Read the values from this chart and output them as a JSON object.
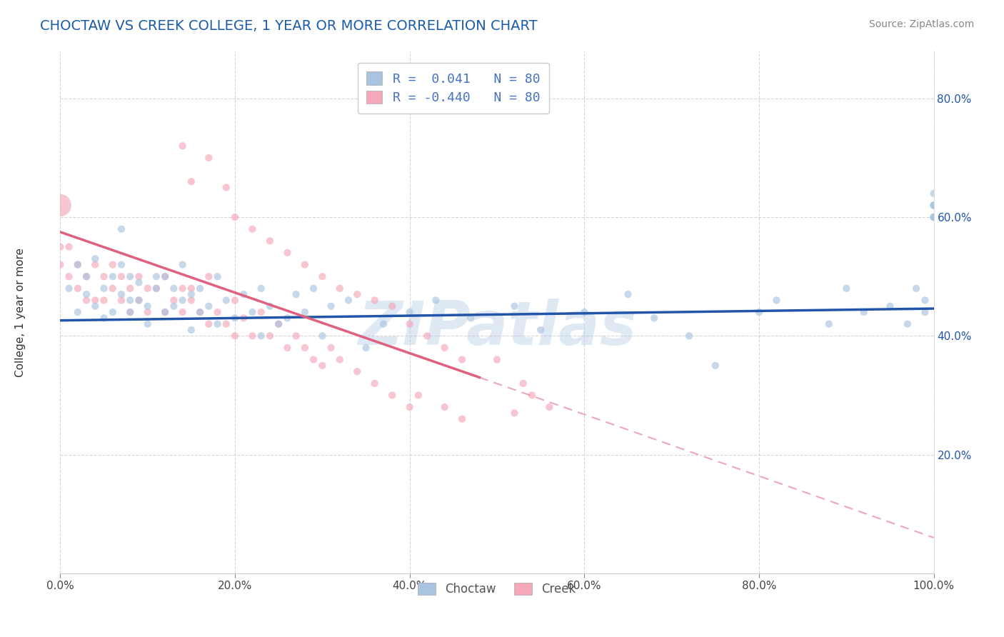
{
  "title": "CHOCTAW VS CREEK COLLEGE, 1 YEAR OR MORE CORRELATION CHART",
  "source_text": "Source: ZipAtlas.com",
  "ylabel": "College, 1 year or more",
  "xlim": [
    0.0,
    1.0
  ],
  "ylim": [
    0.0,
    0.88
  ],
  "xtick_labels": [
    "0.0%",
    "20.0%",
    "40.0%",
    "60.0%",
    "80.0%",
    "100.0%"
  ],
  "xtick_vals": [
    0.0,
    0.2,
    0.4,
    0.6,
    0.8,
    1.0
  ],
  "ytick_labels": [
    "20.0%",
    "40.0%",
    "60.0%",
    "80.0%"
  ],
  "ytick_vals": [
    0.2,
    0.4,
    0.6,
    0.8
  ],
  "legend_r_choctaw": "0.041",
  "legend_r_creek": "-0.440",
  "legend_n_choctaw": "80",
  "legend_n_creek": "80",
  "choctaw_color": "#a8c4e0",
  "creek_color": "#f4a8b8",
  "choctaw_line_color": "#2255aa",
  "creek_line_color": "#e06080",
  "watermark": "ZIPatlas",
  "background_color": "#ffffff",
  "grid_color": "#cccccc",
  "title_color": "#1a5ca8",
  "legend_text_color": "#4472c4",
  "choctaw_scatter": {
    "x": [
      0.01,
      0.02,
      0.02,
      0.03,
      0.03,
      0.04,
      0.04,
      0.05,
      0.05,
      0.06,
      0.06,
      0.07,
      0.07,
      0.07,
      0.08,
      0.08,
      0.08,
      0.09,
      0.09,
      0.1,
      0.1,
      0.11,
      0.11,
      0.12,
      0.12,
      0.13,
      0.13,
      0.14,
      0.14,
      0.15,
      0.15,
      0.16,
      0.16,
      0.17,
      0.18,
      0.18,
      0.19,
      0.2,
      0.21,
      0.22,
      0.23,
      0.23,
      0.24,
      0.25,
      0.26,
      0.27,
      0.28,
      0.29,
      0.3,
      0.31,
      0.33,
      0.35,
      0.37,
      0.4,
      0.43,
      0.47,
      0.52,
      0.55,
      0.6,
      0.65,
      0.68,
      0.72,
      0.75,
      0.8,
      0.82,
      0.88,
      0.9,
      0.92,
      0.95,
      0.97,
      0.98,
      0.99,
      0.99,
      1.0,
      1.0,
      1.0,
      1.0,
      1.0,
      1.0,
      1.0
    ],
    "y": [
      0.48,
      0.52,
      0.44,
      0.47,
      0.5,
      0.53,
      0.45,
      0.43,
      0.48,
      0.5,
      0.44,
      0.47,
      0.52,
      0.58,
      0.46,
      0.5,
      0.44,
      0.49,
      0.46,
      0.42,
      0.45,
      0.48,
      0.5,
      0.44,
      0.5,
      0.48,
      0.45,
      0.46,
      0.52,
      0.47,
      0.41,
      0.44,
      0.48,
      0.45,
      0.5,
      0.42,
      0.46,
      0.43,
      0.47,
      0.44,
      0.48,
      0.4,
      0.45,
      0.42,
      0.43,
      0.47,
      0.44,
      0.48,
      0.4,
      0.45,
      0.46,
      0.38,
      0.42,
      0.44,
      0.46,
      0.43,
      0.45,
      0.41,
      0.44,
      0.47,
      0.43,
      0.4,
      0.35,
      0.44,
      0.46,
      0.42,
      0.48,
      0.44,
      0.45,
      0.42,
      0.48,
      0.44,
      0.46,
      0.62,
      0.6,
      0.62,
      0.6,
      0.62,
      0.64,
      0.6
    ]
  },
  "creek_scatter": {
    "x": [
      0.0,
      0.0,
      0.0,
      0.01,
      0.01,
      0.02,
      0.02,
      0.03,
      0.03,
      0.04,
      0.04,
      0.05,
      0.05,
      0.06,
      0.06,
      0.07,
      0.07,
      0.08,
      0.08,
      0.09,
      0.09,
      0.1,
      0.1,
      0.11,
      0.12,
      0.12,
      0.13,
      0.14,
      0.14,
      0.15,
      0.15,
      0.16,
      0.17,
      0.17,
      0.18,
      0.19,
      0.2,
      0.2,
      0.21,
      0.22,
      0.23,
      0.24,
      0.25,
      0.26,
      0.27,
      0.28,
      0.29,
      0.3,
      0.31,
      0.32,
      0.34,
      0.36,
      0.38,
      0.4,
      0.41,
      0.44,
      0.46,
      0.5,
      0.52,
      0.53,
      0.54,
      0.56,
      0.14,
      0.15,
      0.17,
      0.19,
      0.2,
      0.22,
      0.24,
      0.26,
      0.28,
      0.3,
      0.32,
      0.34,
      0.36,
      0.38,
      0.4,
      0.42,
      0.44,
      0.46
    ],
    "y": [
      0.62,
      0.55,
      0.52,
      0.5,
      0.55,
      0.52,
      0.48,
      0.5,
      0.46,
      0.52,
      0.46,
      0.5,
      0.46,
      0.52,
      0.48,
      0.5,
      0.46,
      0.48,
      0.44,
      0.5,
      0.46,
      0.48,
      0.44,
      0.48,
      0.5,
      0.44,
      0.46,
      0.48,
      0.44,
      0.48,
      0.46,
      0.44,
      0.42,
      0.5,
      0.44,
      0.42,
      0.46,
      0.4,
      0.43,
      0.4,
      0.44,
      0.4,
      0.42,
      0.38,
      0.4,
      0.38,
      0.36,
      0.35,
      0.38,
      0.36,
      0.34,
      0.32,
      0.3,
      0.28,
      0.3,
      0.28,
      0.26,
      0.36,
      0.27,
      0.32,
      0.3,
      0.28,
      0.72,
      0.66,
      0.7,
      0.65,
      0.6,
      0.58,
      0.56,
      0.54,
      0.52,
      0.5,
      0.48,
      0.47,
      0.46,
      0.45,
      0.42,
      0.4,
      0.38,
      0.36
    ],
    "large_idx": 0,
    "large_size": 500
  },
  "choctaw_line": {
    "x0": 0.0,
    "y0": 0.426,
    "x1": 1.0,
    "y1": 0.446
  },
  "creek_line_solid": {
    "x0": 0.0,
    "y0": 0.575,
    "x1": 0.48,
    "y1": 0.33
  },
  "creek_line_dash": {
    "x0": 0.48,
    "y0": 0.33,
    "x1": 1.0,
    "y1": 0.06
  }
}
